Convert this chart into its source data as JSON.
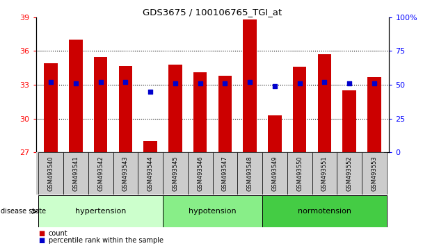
{
  "title": "GDS3675 / 100106765_TGI_at",
  "samples": [
    "GSM493540",
    "GSM493541",
    "GSM493542",
    "GSM493543",
    "GSM493544",
    "GSM493545",
    "GSM493546",
    "GSM493547",
    "GSM493548",
    "GSM493549",
    "GSM493550",
    "GSM493551",
    "GSM493552",
    "GSM493553"
  ],
  "counts": [
    34.9,
    37.0,
    35.5,
    34.7,
    28.0,
    34.8,
    34.1,
    33.8,
    38.8,
    30.3,
    34.6,
    35.7,
    32.5,
    33.7
  ],
  "percentiles": [
    52,
    51,
    52,
    52,
    45,
    51,
    51,
    51,
    52,
    49,
    51,
    52,
    51,
    51
  ],
  "groups": [
    {
      "label": "hypertension",
      "start": 0,
      "end": 5,
      "color": "#ccffcc"
    },
    {
      "label": "hypotension",
      "start": 5,
      "end": 9,
      "color": "#88ee88"
    },
    {
      "label": "normotension",
      "start": 9,
      "end": 14,
      "color": "#44cc44"
    }
  ],
  "bar_color": "#cc0000",
  "dot_color": "#0000cc",
  "ylim_left": [
    27,
    39
  ],
  "ylim_right": [
    0,
    100
  ],
  "yticks_left": [
    27,
    30,
    33,
    36,
    39
  ],
  "yticks_right": [
    0,
    25,
    50,
    75,
    100
  ],
  "grid_values": [
    30,
    33,
    36
  ],
  "bar_width": 0.55
}
